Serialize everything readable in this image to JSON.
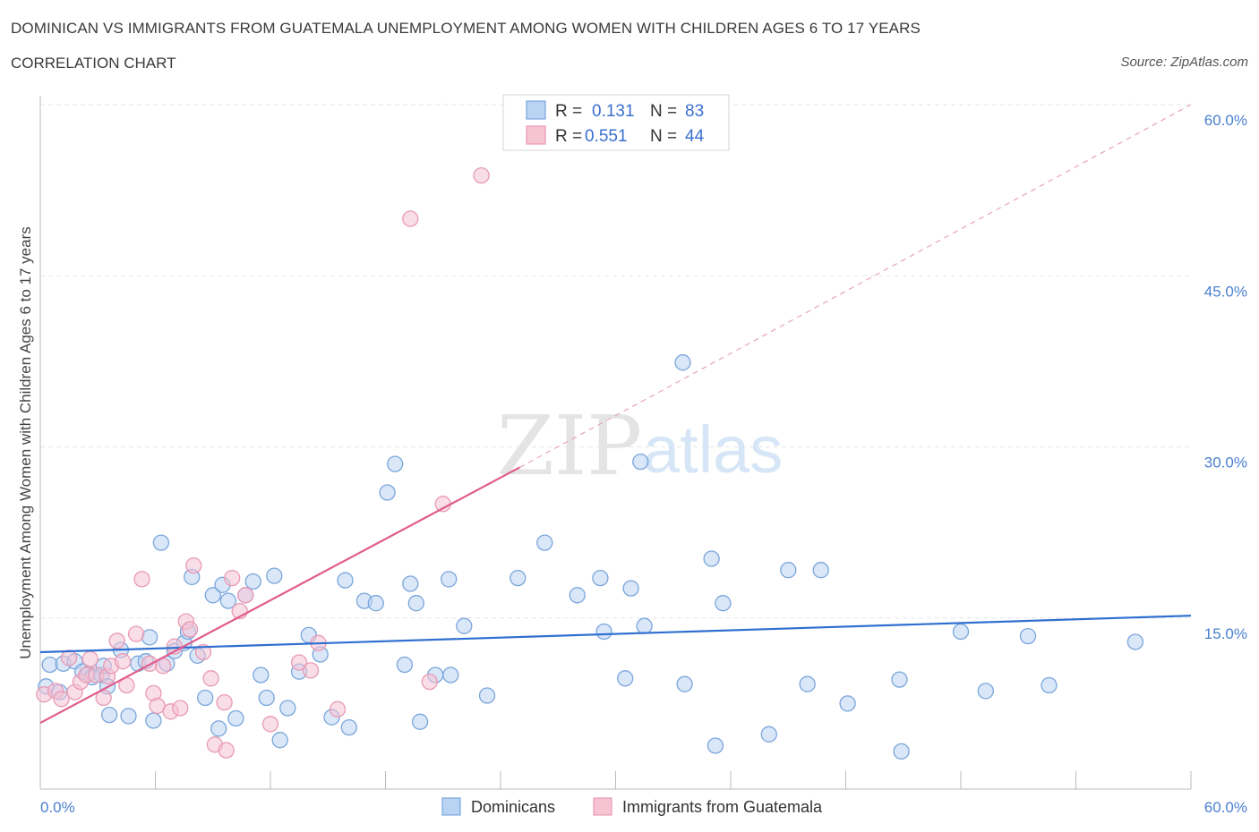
{
  "header": {
    "title": "DOMINICAN VS IMMIGRANTS FROM GUATEMALA UNEMPLOYMENT AMONG WOMEN WITH CHILDREN AGES 6 TO 17 YEARS",
    "subtitle": "CORRELATION CHART",
    "source": "Source: ZipAtlas.com"
  },
  "watermark": {
    "zip": "ZIP",
    "atlas": "atlas"
  },
  "legend": {
    "rows": [
      {
        "r_label": "R =",
        "r_value": "0.131",
        "n_label": "N =",
        "n_value": "83"
      },
      {
        "r_label": "R =",
        "r_value": "0.551",
        "n_label": "N =",
        "n_value": "44"
      }
    ]
  },
  "bottom_legend": {
    "items": [
      "Dominicans",
      "Immigrants from Guatemala"
    ]
  },
  "chart_data": {
    "type": "scatter",
    "title": "DOMINICAN VS IMMIGRANTS FROM GUATEMALA UNEMPLOYMENT AMONG WOMEN WITH CHILDREN AGES 6 TO 17 YEARS",
    "ylabel": "Unemployment Among Women with Children Ages 6 to 17 years",
    "xlabel": "",
    "xlim": [
      0,
      60
    ],
    "ylim": [
      0,
      60
    ],
    "x_tick_labels": [
      "0.0%",
      "60.0%"
    ],
    "y_ticks": [
      15,
      30,
      45,
      60
    ],
    "y_tick_labels": [
      "15.0%",
      "30.0%",
      "45.0%",
      "60.0%"
    ],
    "grid": true,
    "colors": {
      "dominicans_fill": "#b9d3f3",
      "dominicans_stroke": "#7aa6dc",
      "dominicans_line": "#2e6fd0",
      "guatemala_fill": "#f6c3d3",
      "guatemala_stroke": "#e89ab4",
      "guatemala_line": "#e05c8c",
      "tick_text": "#4a7fd0"
    },
    "series": [
      {
        "name": "Dominicans",
        "r": 0.131,
        "n": 83,
        "trend": {
          "x": [
            0,
            60
          ],
          "y": [
            12.0,
            15.2
          ],
          "style": "solid"
        },
        "points": [
          [
            0.5,
            10.9
          ],
          [
            1.2,
            11.0
          ],
          [
            1.8,
            11.2
          ],
          [
            2.2,
            10.3
          ],
          [
            2.5,
            10.1
          ],
          [
            2.7,
            9.8
          ],
          [
            3.2,
            10.0
          ],
          [
            3.3,
            10.8
          ],
          [
            3.5,
            9.0
          ],
          [
            3.6,
            6.5
          ],
          [
            4.2,
            12.2
          ],
          [
            4.6,
            6.4
          ],
          [
            5.1,
            11.0
          ],
          [
            5.5,
            11.2
          ],
          [
            5.7,
            13.3
          ],
          [
            5.9,
            6.0
          ],
          [
            6.3,
            21.6
          ],
          [
            6.6,
            11.0
          ],
          [
            7.0,
            12.1
          ],
          [
            7.5,
            12.8
          ],
          [
            7.7,
            13.8
          ],
          [
            7.9,
            18.6
          ],
          [
            8.2,
            11.7
          ],
          [
            8.6,
            8.0
          ],
          [
            9.0,
            17.0
          ],
          [
            9.3,
            5.3
          ],
          [
            9.5,
            17.9
          ],
          [
            9.8,
            16.5
          ],
          [
            10.2,
            6.2
          ],
          [
            10.7,
            17.0
          ],
          [
            11.1,
            18.2
          ],
          [
            11.5,
            10.0
          ],
          [
            11.8,
            8.0
          ],
          [
            12.2,
            18.7
          ],
          [
            12.5,
            4.3
          ],
          [
            12.9,
            7.1
          ],
          [
            13.5,
            10.3
          ],
          [
            14.0,
            13.5
          ],
          [
            14.6,
            11.8
          ],
          [
            15.2,
            6.3
          ],
          [
            15.9,
            18.3
          ],
          [
            16.1,
            5.4
          ],
          [
            16.9,
            16.5
          ],
          [
            17.5,
            16.3
          ],
          [
            18.5,
            28.5
          ],
          [
            18.1,
            26.0
          ],
          [
            19.0,
            10.9
          ],
          [
            19.3,
            18.0
          ],
          [
            19.6,
            16.3
          ],
          [
            19.8,
            5.9
          ],
          [
            20.6,
            10.0
          ],
          [
            21.3,
            18.4
          ],
          [
            21.4,
            10.0
          ],
          [
            22.1,
            14.3
          ],
          [
            23.3,
            8.2
          ],
          [
            24.9,
            18.5
          ],
          [
            26.3,
            21.6
          ],
          [
            28.0,
            17.0
          ],
          [
            29.2,
            18.5
          ],
          [
            29.4,
            13.8
          ],
          [
            30.5,
            9.7
          ],
          [
            30.8,
            17.6
          ],
          [
            31.3,
            28.7
          ],
          [
            31.5,
            14.3
          ],
          [
            33.5,
            37.4
          ],
          [
            33.6,
            9.2
          ],
          [
            35.0,
            20.2
          ],
          [
            35.2,
            3.8
          ],
          [
            35.6,
            16.3
          ],
          [
            38.0,
            4.8
          ],
          [
            39.0,
            19.2
          ],
          [
            40.0,
            9.2
          ],
          [
            40.7,
            19.2
          ],
          [
            42.1,
            7.5
          ],
          [
            44.8,
            9.6
          ],
          [
            44.9,
            3.3
          ],
          [
            48.0,
            13.8
          ],
          [
            49.3,
            8.6
          ],
          [
            51.5,
            13.4
          ],
          [
            52.6,
            9.1
          ],
          [
            57.1,
            12.9
          ],
          [
            0.3,
            9.0
          ],
          [
            1.0,
            8.5
          ]
        ]
      },
      {
        "name": "Immigrants from Guatemala",
        "r": 0.551,
        "n": 44,
        "trend": {
          "x": [
            0,
            25
          ],
          "y": [
            5.8,
            28.2
          ],
          "x_dashed": [
            25,
            60
          ],
          "y_dashed": [
            28.2,
            60.0
          ],
          "style": "solid-then-dashed"
        },
        "points": [
          [
            0.2,
            8.3
          ],
          [
            0.8,
            8.6
          ],
          [
            1.1,
            7.9
          ],
          [
            1.5,
            11.5
          ],
          [
            1.8,
            8.5
          ],
          [
            2.1,
            9.4
          ],
          [
            2.4,
            10.0
          ],
          [
            2.6,
            11.4
          ],
          [
            2.9,
            10.0
          ],
          [
            3.3,
            8.0
          ],
          [
            3.5,
            9.9
          ],
          [
            3.7,
            10.8
          ],
          [
            4.0,
            13.0
          ],
          [
            4.3,
            11.2
          ],
          [
            4.5,
            9.1
          ],
          [
            5.0,
            13.6
          ],
          [
            5.3,
            18.4
          ],
          [
            5.7,
            11.0
          ],
          [
            5.9,
            8.4
          ],
          [
            6.1,
            7.3
          ],
          [
            6.4,
            10.8
          ],
          [
            6.8,
            6.8
          ],
          [
            7.0,
            12.5
          ],
          [
            7.3,
            7.1
          ],
          [
            7.6,
            14.7
          ],
          [
            7.8,
            14.0
          ],
          [
            8.0,
            19.6
          ],
          [
            8.5,
            12.0
          ],
          [
            8.9,
            9.7
          ],
          [
            9.1,
            3.9
          ],
          [
            9.6,
            7.6
          ],
          [
            9.7,
            3.4
          ],
          [
            10.0,
            18.5
          ],
          [
            10.4,
            15.6
          ],
          [
            10.7,
            17.0
          ],
          [
            12.0,
            5.7
          ],
          [
            13.5,
            11.1
          ],
          [
            14.1,
            10.4
          ],
          [
            14.5,
            12.8
          ],
          [
            15.5,
            7.0
          ],
          [
            19.3,
            50.0
          ],
          [
            20.3,
            9.4
          ],
          [
            21.0,
            25.0
          ],
          [
            23.0,
            53.8
          ]
        ]
      }
    ]
  }
}
